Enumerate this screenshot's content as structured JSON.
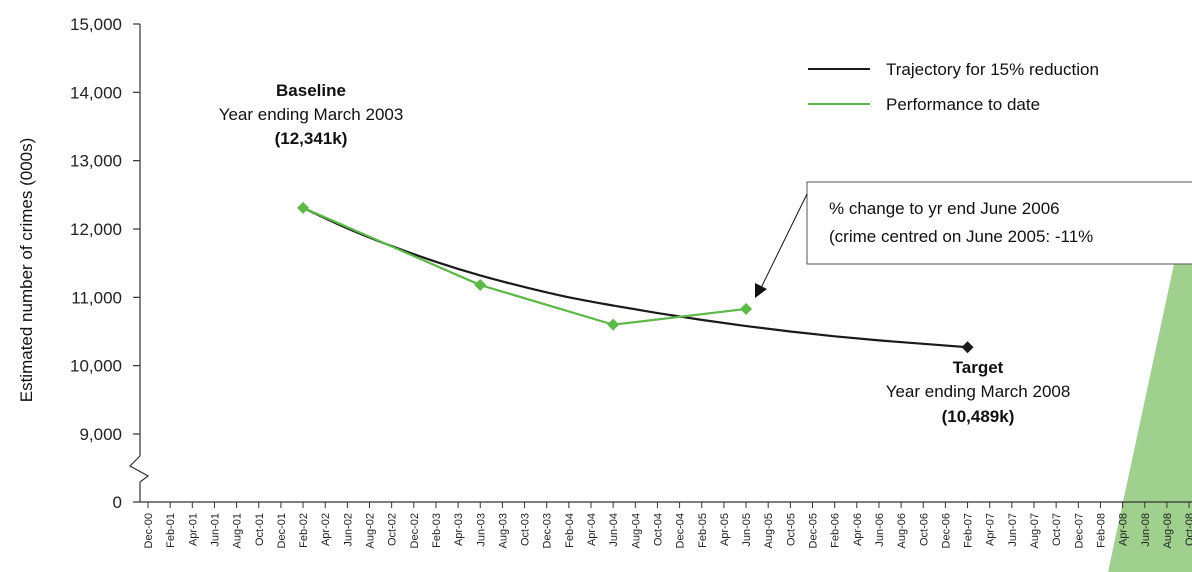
{
  "chart_data": {
    "type": "line",
    "ylabel": "Estimated number of crimes (000s)",
    "y_ticks": [
      "15,000",
      "14,000",
      "13,000",
      "12,000",
      "11,000",
      "10,000",
      "9,000",
      "0"
    ],
    "ylim": [
      9000,
      15000
    ],
    "y_axis_break": true,
    "x_ticks": [
      "Dec-00",
      "Feb-01",
      "Apr-01",
      "Jun-01",
      "Aug-01",
      "Oct-01",
      "Dec-01",
      "Feb-02",
      "Apr-02",
      "Jun-02",
      "Aug-02",
      "Oct-02",
      "Dec-02",
      "Feb-03",
      "Apr-03",
      "Jun-03",
      "Aug-03",
      "Oct-03",
      "Dec-03",
      "Feb-04",
      "Apr-04",
      "Jun-04",
      "Aug-04",
      "Oct-04",
      "Dec-04",
      "Feb-05",
      "Apr-05",
      "Jun-05",
      "Aug-05",
      "Oct-05",
      "Dec-05",
      "Feb-06",
      "Apr-06",
      "Jun-06",
      "Aug-06",
      "Oct-06",
      "Dec-06",
      "Feb-07",
      "Apr-07",
      "Jun-07",
      "Aug-07",
      "Oct-07",
      "Dec-07",
      "Feb-08",
      "Apr-08",
      "Jun-08",
      "Aug-08",
      "Oct-08"
    ],
    "legend": {
      "placement": "top-right",
      "entries": [
        {
          "label": "Trajectory for 15% reduction",
          "color": "#1a1a1a"
        },
        {
          "label": "Performance to date",
          "color": "#5cb847"
        }
      ]
    },
    "series": [
      {
        "name": "Trajectory for 15% reduction",
        "color": "#1a1a1a",
        "points": [
          {
            "x": "Feb-02",
            "y": 12310
          },
          {
            "x": "Jun-02",
            "y": 12010
          },
          {
            "x": "Oct-02",
            "y": 11750
          },
          {
            "x": "Feb-03",
            "y": 11520
          },
          {
            "x": "Jun-03",
            "y": 11320
          },
          {
            "x": "Oct-03",
            "y": 11150
          },
          {
            "x": "Feb-04",
            "y": 11000
          },
          {
            "x": "Jun-04",
            "y": 10880
          },
          {
            "x": "Oct-04",
            "y": 10770
          },
          {
            "x": "Feb-05",
            "y": 10670
          },
          {
            "x": "Jun-05",
            "y": 10580
          },
          {
            "x": "Oct-05",
            "y": 10500
          },
          {
            "x": "Feb-06",
            "y": 10430
          },
          {
            "x": "Jun-06",
            "y": 10370
          },
          {
            "x": "Oct-06",
            "y": 10320
          },
          {
            "x": "Feb-07",
            "y": 10270
          }
        ],
        "end_marker": {
          "x": "Feb-07",
          "y": 10270
        }
      },
      {
        "name": "Performance to date",
        "color": "#5cb847",
        "points": [
          {
            "x": "Feb-02",
            "y": 12310
          },
          {
            "x": "Jun-03",
            "y": 11180
          },
          {
            "x": "Jun-04",
            "y": 10600
          },
          {
            "x": "Jun-05",
            "y": 10830
          }
        ]
      }
    ],
    "annotations": {
      "baseline": {
        "title": "Baseline",
        "line1": "Year ending March 2003",
        "value": "(12,341k)"
      },
      "target": {
        "title": "Target",
        "line1": "Year ending March 2008",
        "value": "(10,489k)"
      },
      "callout": {
        "line1": "% change to yr end June 2006",
        "line2": "(crime centred on June 2005: -11%"
      }
    },
    "colors": {
      "axis": "#333333",
      "callout_border": "#555555",
      "shade": "#9fd08e"
    }
  }
}
